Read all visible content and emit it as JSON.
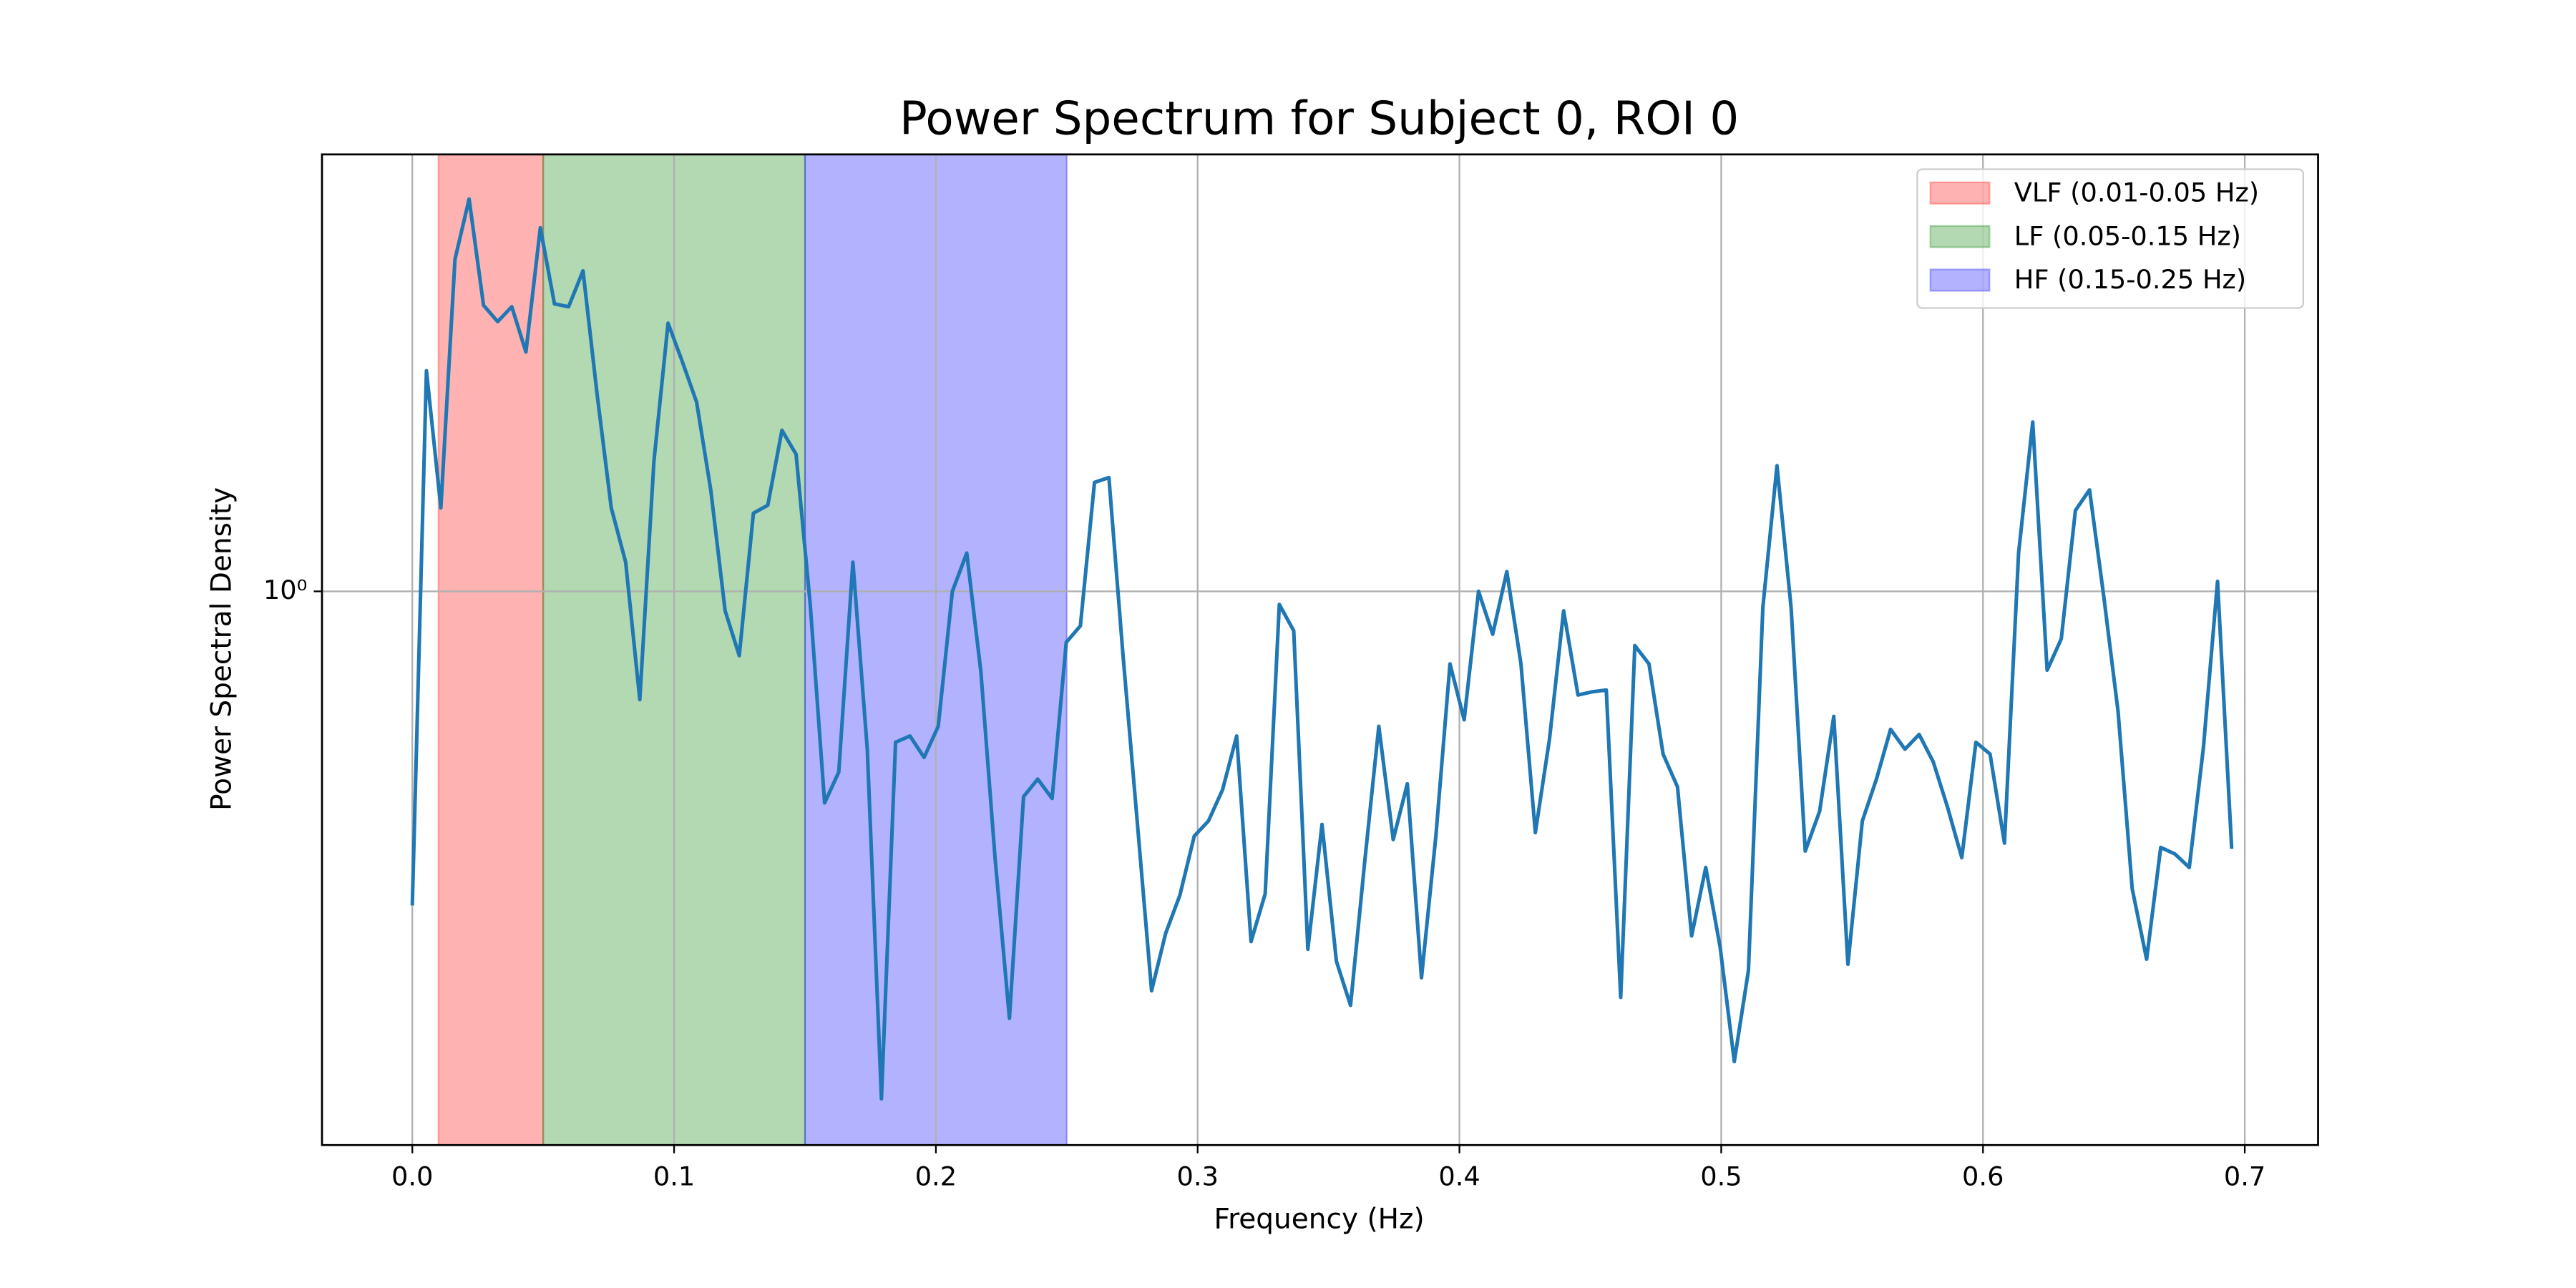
{
  "chart_data": {
    "type": "line",
    "title": "Power Spectrum for Subject 0, ROI 0",
    "xlabel": "Frequency (Hz)",
    "ylabel": "Power Spectral Density",
    "color": "#1f77b4",
    "yscale": "log",
    "grid": true,
    "legend": "upper right",
    "xlim": [
      -0.0345,
      0.728
    ],
    "ylim": [
      0.1945,
      3.64
    ],
    "xticks": [
      {
        "value": 0,
        "label": "0.0"
      },
      0.1,
      0.2,
      0.3,
      0.4,
      0.5,
      0.6,
      0.7
    ],
    "yticks": [
      {
        "value": 1,
        "label": "10⁰"
      }
    ],
    "bands": [
      {
        "name": "VLF (0.01-0.05 Hz)",
        "range": [
          0.01,
          0.05
        ],
        "color": "#ff0000"
      },
      {
        "name": "LF (0.05-0.15 Hz)",
        "range": [
          0.05,
          0.15
        ],
        "color": "#008000"
      },
      {
        "name": "HF (0.15-0.25 Hz)",
        "range": [
          0.15,
          0.25
        ],
        "color": "#0000ff"
      }
    ],
    "x": [
      0,
      0.0054,
      0.0109,
      0.0163,
      0.0217,
      0.0272,
      0.0326,
      0.038,
      0.0434,
      0.0489,
      0.0543,
      0.0597,
      0.0652,
      0.0706,
      0.076,
      0.0815,
      0.0869,
      0.0923,
      0.0977,
      0.1032,
      0.1086,
      0.114,
      0.1195,
      0.1249,
      0.1303,
      0.1358,
      0.1412,
      0.1466,
      0.152,
      0.1575,
      0.1629,
      0.1683,
      0.1738,
      0.1792,
      0.1846,
      0.1901,
      0.1955,
      0.2009,
      0.2063,
      0.2118,
      0.2172,
      0.2226,
      0.2281,
      0.2335,
      0.2389,
      0.2444,
      0.2498,
      0.2552,
      0.2606,
      0.2661,
      0.2715,
      0.2769,
      0.2824,
      0.2878,
      0.2932,
      0.2987,
      0.3041,
      0.3095,
      0.3149,
      0.3204,
      0.3258,
      0.3312,
      0.3367,
      0.3421,
      0.3475,
      0.353,
      0.3584,
      0.3638,
      0.3692,
      0.3747,
      0.3801,
      0.3855,
      0.391,
      0.3964,
      0.4018,
      0.4073,
      0.4127,
      0.4181,
      0.4235,
      0.429,
      0.4344,
      0.4398,
      0.4453,
      0.4507,
      0.4561,
      0.4616,
      0.467,
      0.4724,
      0.4778,
      0.4833,
      0.4887,
      0.4941,
      0.4996,
      0.505,
      0.5104,
      0.5159,
      0.5213,
      0.5267,
      0.5321,
      0.5376,
      0.543,
      0.5484,
      0.5539,
      0.5593,
      0.5647,
      0.5702,
      0.5756,
      0.581,
      0.5864,
      0.5919,
      0.5973,
      0.6027,
      0.6082,
      0.6136,
      0.619,
      0.6245,
      0.6299,
      0.6353,
      0.6407,
      0.6462,
      0.6516,
      0.657,
      0.6625,
      0.6679,
      0.6733,
      0.6788,
      0.6842,
      0.6896,
      0.695
    ],
    "values": [
      0.395,
      1.92,
      1.28,
      2.67,
      3.19,
      2.33,
      2.22,
      2.32,
      2.03,
      2.93,
      2.34,
      2.32,
      2.58,
      1.79,
      1.28,
      1.09,
      0.726,
      1.47,
      2.21,
      1.97,
      1.75,
      1.35,
      0.944,
      0.827,
      1.26,
      1.29,
      1.61,
      1.5,
      0.962,
      0.535,
      0.586,
      1.09,
      0.627,
      0.223,
      0.64,
      0.652,
      0.612,
      0.671,
      1.0,
      1.12,
      0.788,
      0.455,
      0.283,
      0.545,
      0.574,
      0.542,
      0.86,
      0.903,
      1.38,
      1.4,
      0.827,
      0.507,
      0.307,
      0.364,
      0.407,
      0.485,
      0.507,
      0.556,
      0.652,
      0.355,
      0.409,
      0.962,
      0.89,
      0.347,
      0.502,
      0.335,
      0.294,
      0.449,
      0.671,
      0.48,
      0.566,
      0.319,
      0.485,
      0.807,
      0.684,
      1.0,
      0.881,
      1.06,
      0.807,
      0.49,
      0.646,
      0.944,
      0.736,
      0.743,
      0.747,
      0.301,
      0.852,
      0.807,
      0.618,
      0.561,
      0.361,
      0.442,
      0.349,
      0.249,
      0.326,
      0.953,
      1.45,
      0.953,
      0.464,
      0.522,
      0.691,
      0.332,
      0.507,
      0.574,
      0.665,
      0.627,
      0.655,
      0.604,
      0.529,
      0.455,
      0.64,
      0.618,
      0.475,
      1.12,
      1.65,
      0.792,
      0.869,
      1.27,
      1.35,
      0.981,
      0.701,
      0.415,
      0.337,
      0.469,
      0.46,
      0.442,
      0.63,
      1.03,
      0.467
    ]
  }
}
